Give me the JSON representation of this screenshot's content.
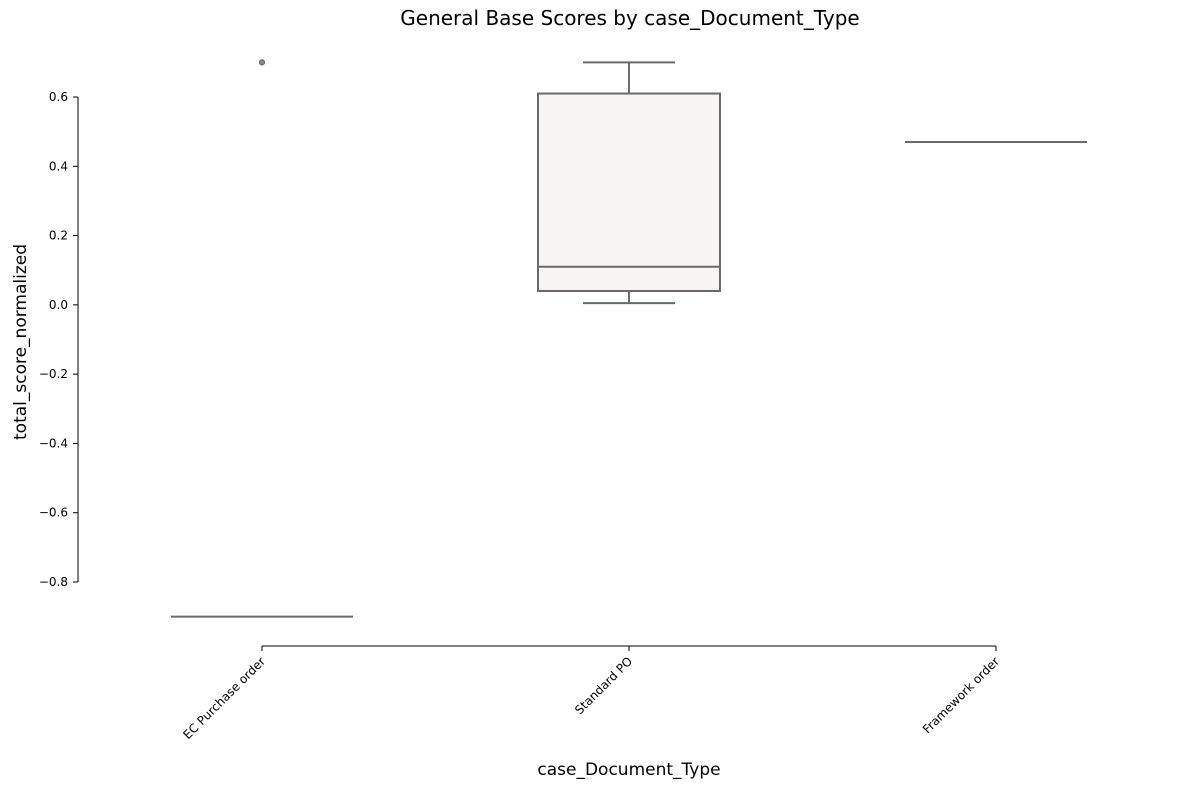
{
  "chart_data": {
    "type": "box",
    "title": "General Base Scores by case_Document_Type",
    "xlabel": "case_Document_Type",
    "ylabel": "total_score_normalized",
    "ylim": [
      -0.8,
      0.6
    ],
    "yticks": [
      0.6,
      0.4,
      0.2,
      0.0,
      -0.2,
      -0.4,
      -0.6,
      -0.8
    ],
    "ytick_labels": [
      "0.6",
      "0.4",
      "0.2",
      "0.0",
      "−0.2",
      "−0.4",
      "−0.6",
      "−0.8"
    ],
    "grid": false,
    "categories": [
      "EC Purchase order",
      "Standard PO",
      "Framework order"
    ],
    "boxes": [
      {
        "category": "EC Purchase order",
        "min": -0.9,
        "q1": -0.9,
        "median": -0.9,
        "q3": -0.9,
        "max": -0.9,
        "fliers": [
          0.7
        ]
      },
      {
        "category": "Standard PO",
        "min": 0.005,
        "q1": 0.04,
        "median": 0.11,
        "q3": 0.61,
        "max": 0.7,
        "fliers": []
      },
      {
        "category": "Framework order",
        "min": 0.47,
        "q1": 0.47,
        "median": 0.47,
        "q3": 0.47,
        "max": 0.47,
        "fliers": []
      }
    ]
  }
}
